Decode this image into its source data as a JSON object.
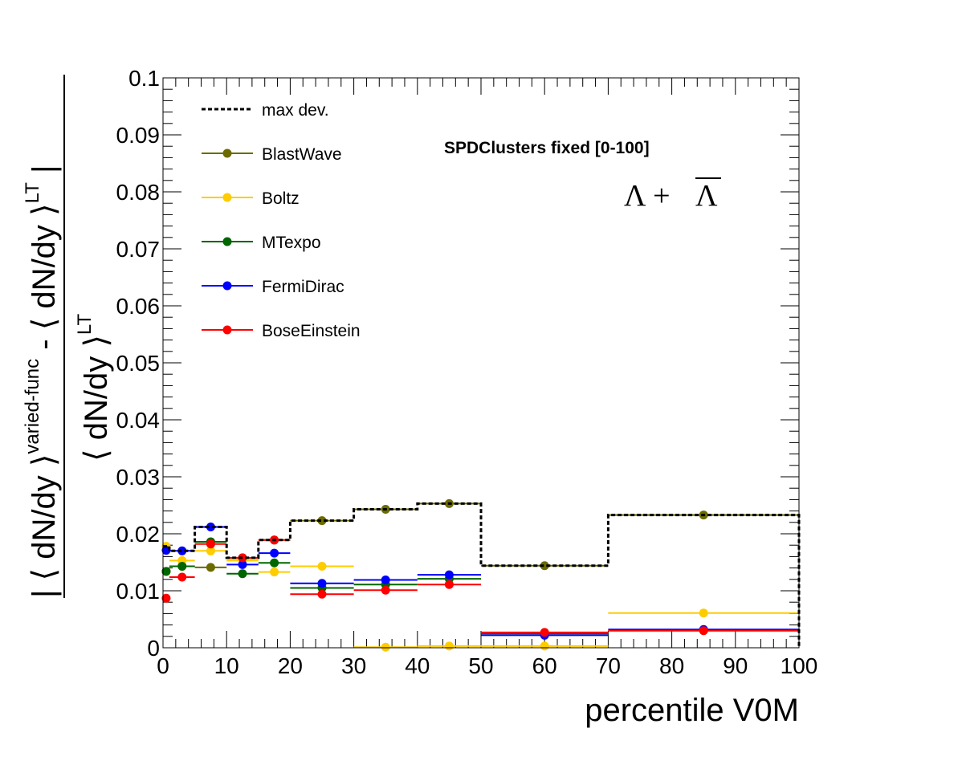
{
  "chart_data": {
    "type": "line",
    "xlabel": "percentile V0M",
    "ylabel": {
      "numerator_prefix": "| ⟨ dN/dy ⟩",
      "numerator_sup1": "varied-func",
      "numerator_mid": " - ⟨ dN/dy ⟩",
      "numerator_sup2": "LT",
      "numerator_suffix": " |",
      "denominator": "⟨ dN/dy ⟩",
      "denominator_sup": "LT"
    },
    "xlim": [
      0,
      100
    ],
    "ylim": [
      0,
      0.1
    ],
    "xticks": [
      "0",
      "10",
      "20",
      "30",
      "40",
      "50",
      "60",
      "70",
      "80",
      "90",
      "100"
    ],
    "yticks": [
      "0",
      "0.01",
      "0.02",
      "0.03",
      "0.04",
      "0.05",
      "0.06",
      "0.07",
      "0.08",
      "0.09",
      "0.1"
    ],
    "bins": [
      [
        0,
        1
      ],
      [
        1,
        5
      ],
      [
        5,
        10
      ],
      [
        10,
        15
      ],
      [
        15,
        20
      ],
      [
        20,
        30
      ],
      [
        30,
        40
      ],
      [
        40,
        50
      ],
      [
        50,
        70
      ],
      [
        70,
        100
      ]
    ],
    "annotation": "SPDClusters fixed [0-100]",
    "particle_label": {
      "main": "Λ + ",
      "bar": "Λ"
    },
    "series": [
      {
        "name": "max dev.",
        "style": "dashed-step",
        "color": "#000000",
        "values": [
          0.0178,
          0.017,
          0.0212,
          0.0158,
          0.0189,
          0.0223,
          0.0243,
          0.0253,
          0.0144,
          0.0233
        ]
      },
      {
        "name": "BlastWave",
        "color": "#6b6b00",
        "values": [
          0.0134,
          0.0143,
          0.0141,
          0.0157,
          0.0189,
          0.0223,
          0.0243,
          0.0253,
          0.0144,
          0.0233
        ]
      },
      {
        "name": "Boltz",
        "color": "#ffcc00",
        "values": [
          0.0178,
          0.0153,
          0.017,
          0.0153,
          0.0133,
          0.0143,
          0.0001,
          0.0003,
          0.0003,
          0.0061
        ]
      },
      {
        "name": "MTexpo",
        "color": "#006600",
        "values": [
          0.0134,
          0.0143,
          0.0186,
          0.013,
          0.0149,
          0.0105,
          0.0111,
          0.0121,
          0.0025,
          0.0031
        ]
      },
      {
        "name": "FermiDirac",
        "color": "#0000ff",
        "values": [
          0.0171,
          0.017,
          0.0212,
          0.0146,
          0.0166,
          0.0113,
          0.0119,
          0.0128,
          0.0022,
          0.0032
        ]
      },
      {
        "name": "BoseEinstein",
        "color": "#ff0000",
        "values": [
          0.0087,
          0.0124,
          0.0182,
          0.0158,
          0.0189,
          0.0094,
          0.0101,
          0.0111,
          0.0027,
          0.003
        ]
      }
    ]
  }
}
